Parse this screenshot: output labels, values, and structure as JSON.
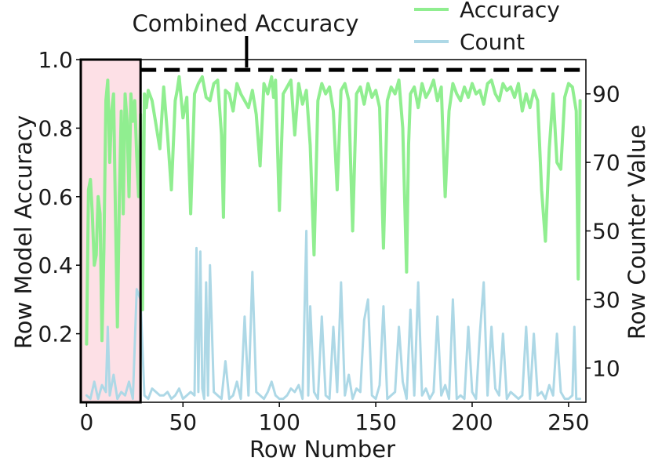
{
  "chart_data": {
    "type": "line",
    "xlabel": "Row Number",
    "ylabel_left": "Row Model Accuracy",
    "ylabel_right": "Row Counter Value",
    "xlim": [
      -3,
      259
    ],
    "ylim_left": [
      0.0,
      1.0
    ],
    "ylim_right": [
      0,
      100
    ],
    "x_ticks": [
      0,
      50,
      100,
      150,
      200,
      250
    ],
    "y_ticks_left": [
      {
        "value": 0.2,
        "label": "0.2"
      },
      {
        "value": 0.4,
        "label": "0.4"
      },
      {
        "value": 0.6,
        "label": "0.6"
      },
      {
        "value": 0.8,
        "label": "0.8"
      },
      {
        "value": 1.0,
        "label": "1.0"
      }
    ],
    "y_ticks_right": [
      10,
      30,
      50,
      70,
      90
    ],
    "annotation": {
      "text": "Combined Accuracy",
      "x": 83,
      "y_arrow_tip": 0.97
    },
    "reference_line": {
      "y": 0.97,
      "style": "dashed",
      "color": "#000000"
    },
    "highlight_region": {
      "x0": -3,
      "x1": 28,
      "color": "#fde0e6",
      "border": "#000000"
    },
    "legend": {
      "placement": "top-right",
      "entries": [
        {
          "name": "Accuracy",
          "color": "#90ee90"
        },
        {
          "name": "Count",
          "color": "#add8e6"
        }
      ]
    },
    "series": [
      {
        "name": "Accuracy",
        "axis": "left",
        "color": "#90ee90",
        "x": [
          0,
          1,
          2,
          3,
          4,
          5,
          6,
          7,
          8,
          9,
          10,
          11,
          12,
          13,
          14,
          15,
          16,
          17,
          18,
          19,
          20,
          21,
          22,
          23,
          24,
          25,
          26,
          27,
          28,
          29,
          30,
          31,
          32,
          34,
          36,
          38,
          40,
          42,
          44,
          46,
          47,
          48,
          50,
          52,
          54,
          56,
          58,
          60,
          62,
          64,
          66,
          68,
          70,
          71,
          72,
          74,
          76,
          78,
          80,
          82,
          84,
          86,
          88,
          90,
          92,
          94,
          96,
          97,
          98,
          100,
          102,
          104,
          106,
          108,
          110,
          112,
          114,
          116,
          118,
          120,
          122,
          124,
          126,
          128,
          130,
          132,
          134,
          136,
          138,
          140,
          142,
          144,
          146,
          148,
          150,
          152,
          154,
          156,
          158,
          160,
          162,
          164,
          166,
          167,
          168,
          170,
          172,
          174,
          176,
          178,
          180,
          182,
          184,
          186,
          188,
          190,
          192,
          194,
          196,
          198,
          200,
          202,
          204,
          206,
          208,
          210,
          212,
          214,
          216,
          218,
          220,
          222,
          224,
          226,
          228,
          230,
          232,
          234,
          236,
          238,
          240,
          242,
          244,
          246,
          248,
          250,
          252,
          254,
          255,
          256
        ],
        "values": [
          0.17,
          0.62,
          0.65,
          0.55,
          0.4,
          0.43,
          0.6,
          0.55,
          0.18,
          0.45,
          0.88,
          0.94,
          0.7,
          0.85,
          0.9,
          0.55,
          0.22,
          0.6,
          0.85,
          0.55,
          0.9,
          0.82,
          0.6,
          0.9,
          0.82,
          0.88,
          0.72,
          0.6,
          0.84,
          0.27,
          0.9,
          0.86,
          0.91,
          0.88,
          0.81,
          0.74,
          0.92,
          0.78,
          0.62,
          0.88,
          0.91,
          0.95,
          0.83,
          0.89,
          0.55,
          0.9,
          0.93,
          0.95,
          0.89,
          0.88,
          0.93,
          0.94,
          0.78,
          0.54,
          0.91,
          0.9,
          0.85,
          0.93,
          0.9,
          0.88,
          0.86,
          0.91,
          0.84,
          0.69,
          0.93,
          0.9,
          0.95,
          0.89,
          0.94,
          0.56,
          0.9,
          0.92,
          0.94,
          0.78,
          0.93,
          0.87,
          0.91,
          0.75,
          0.43,
          0.88,
          0.93,
          0.9,
          0.92,
          0.85,
          0.62,
          0.91,
          0.93,
          0.88,
          0.5,
          0.9,
          0.92,
          0.87,
          0.93,
          0.89,
          0.91,
          0.86,
          0.45,
          0.88,
          0.92,
          0.9,
          0.94,
          0.8,
          0.38,
          0.75,
          0.9,
          0.92,
          0.86,
          0.93,
          0.89,
          0.91,
          0.94,
          0.88,
          0.92,
          0.6,
          0.85,
          0.93,
          0.9,
          0.88,
          0.92,
          0.89,
          0.93,
          0.9,
          0.91,
          0.87,
          0.93,
          0.94,
          0.9,
          0.88,
          0.93,
          0.91,
          0.92,
          0.89,
          0.93,
          0.85,
          0.9,
          0.86,
          0.91,
          0.88,
          0.62,
          0.47,
          0.74,
          0.9,
          0.7,
          0.68,
          0.89,
          0.93,
          0.92,
          0.85,
          0.36,
          0.88
        ]
      },
      {
        "name": "Count",
        "axis": "right",
        "color": "#add8e6",
        "x": [
          0,
          2,
          4,
          6,
          8,
          10,
          11,
          12,
          14,
          16,
          18,
          20,
          22,
          24,
          26,
          28,
          30,
          32,
          34,
          36,
          38,
          40,
          42,
          44,
          46,
          48,
          50,
          52,
          54,
          56,
          57,
          58,
          59,
          60,
          61,
          62,
          63,
          64,
          66,
          68,
          70,
          72,
          74,
          76,
          78,
          80,
          82,
          84,
          86,
          88,
          90,
          92,
          94,
          96,
          98,
          100,
          102,
          104,
          106,
          108,
          110,
          112,
          114,
          115,
          116,
          118,
          120,
          122,
          124,
          126,
          128,
          130,
          132,
          134,
          136,
          138,
          140,
          142,
          144,
          146,
          148,
          150,
          152,
          154,
          156,
          158,
          160,
          162,
          164,
          166,
          168,
          170,
          172,
          174,
          176,
          178,
          180,
          182,
          184,
          186,
          188,
          190,
          192,
          194,
          196,
          198,
          200,
          202,
          204,
          206,
          208,
          210,
          212,
          214,
          216,
          218,
          220,
          222,
          224,
          226,
          228,
          230,
          232,
          234,
          236,
          238,
          240,
          242,
          244,
          246,
          248,
          250,
          252,
          253,
          254,
          256
        ],
        "values": [
          2,
          1,
          6,
          1,
          5,
          3,
          22,
          2,
          8,
          1,
          3,
          2,
          6,
          1,
          33,
          30,
          2,
          1,
          4,
          3,
          2,
          2,
          3,
          1,
          2,
          4,
          1,
          2,
          3,
          2,
          45,
          3,
          44,
          4,
          1,
          35,
          2,
          40,
          3,
          2,
          1,
          12,
          1,
          2,
          6,
          1,
          25,
          2,
          38,
          3,
          2,
          1,
          3,
          6,
          2,
          1,
          1,
          2,
          4,
          3,
          5,
          1,
          50,
          2,
          28,
          3,
          1,
          25,
          2,
          1,
          22,
          3,
          35,
          2,
          8,
          1,
          4,
          3,
          24,
          30,
          2,
          1,
          5,
          28,
          1,
          2,
          3,
          22,
          6,
          1,
          27,
          2,
          35,
          2,
          4,
          1,
          3,
          25,
          2,
          5,
          1,
          30,
          1,
          2,
          1,
          22,
          3,
          1,
          20,
          35,
          2,
          22,
          4,
          2,
          20,
          1,
          3,
          2,
          1,
          2,
          22,
          1,
          20,
          2,
          3,
          1,
          5,
          2,
          20,
          3,
          1,
          1,
          2,
          22,
          1,
          1
        ]
      }
    ]
  }
}
